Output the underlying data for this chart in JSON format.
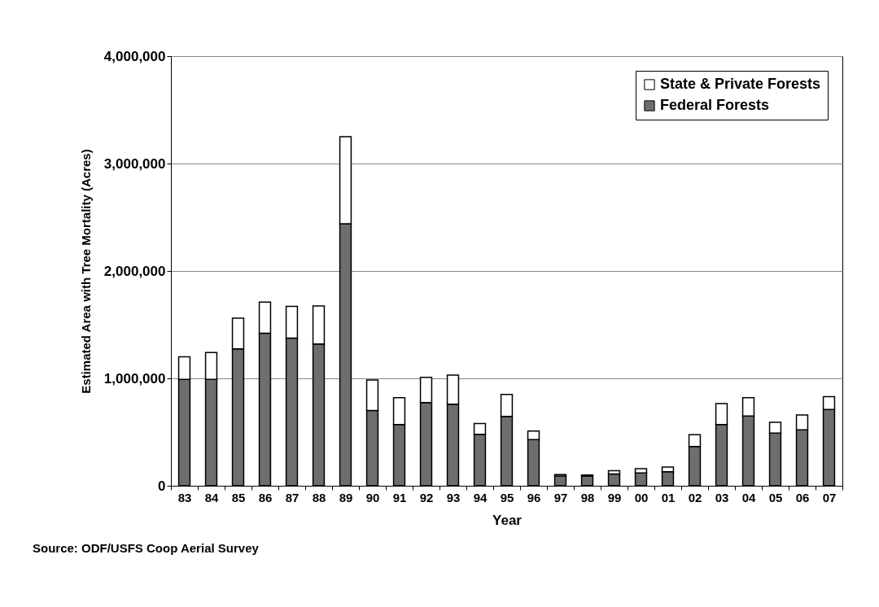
{
  "chart_data": {
    "type": "bar",
    "stacked": true,
    "xlabel": "Year",
    "ylabel": "Estimated Area with Tree Mortality (Acres)",
    "categories": [
      "83",
      "84",
      "85",
      "86",
      "87",
      "88",
      "89",
      "90",
      "91",
      "92",
      "93",
      "94",
      "95",
      "96",
      "97",
      "98",
      "99",
      "00",
      "01",
      "02",
      "03",
      "04",
      "05",
      "06",
      "07"
    ],
    "series": [
      {
        "name": "Federal Forests",
        "color": "#6e6e6e",
        "values": [
          990000,
          990000,
          1275000,
          1420000,
          1375000,
          1320000,
          2440000,
          700000,
          570000,
          775000,
          760000,
          480000,
          645000,
          430000,
          90000,
          90000,
          110000,
          120000,
          130000,
          365000,
          570000,
          650000,
          490000,
          520000,
          710000
        ]
      },
      {
        "name": "State & Private Forests",
        "color": "#ffffff",
        "values": [
          210000,
          250000,
          285000,
          290000,
          295000,
          355000,
          810000,
          285000,
          250000,
          235000,
          270000,
          100000,
          205000,
          80000,
          15000,
          10000,
          30000,
          40000,
          45000,
          110000,
          195000,
          170000,
          100000,
          140000,
          120000
        ]
      }
    ],
    "ylim": [
      0,
      4000000
    ],
    "yticks": [
      0,
      {
        "value": 1000000,
        "label": "1,000,000"
      },
      {
        "value": 2000000,
        "label": "2,000,000"
      },
      {
        "value": 3000000,
        "label": "3,000,000"
      },
      {
        "value": 4000000,
        "label": "4,000,000"
      }
    ],
    "grid": "y",
    "legend": "top right",
    "annotations": [
      "Source: ODF/USFS Coop Aerial Survey"
    ]
  }
}
